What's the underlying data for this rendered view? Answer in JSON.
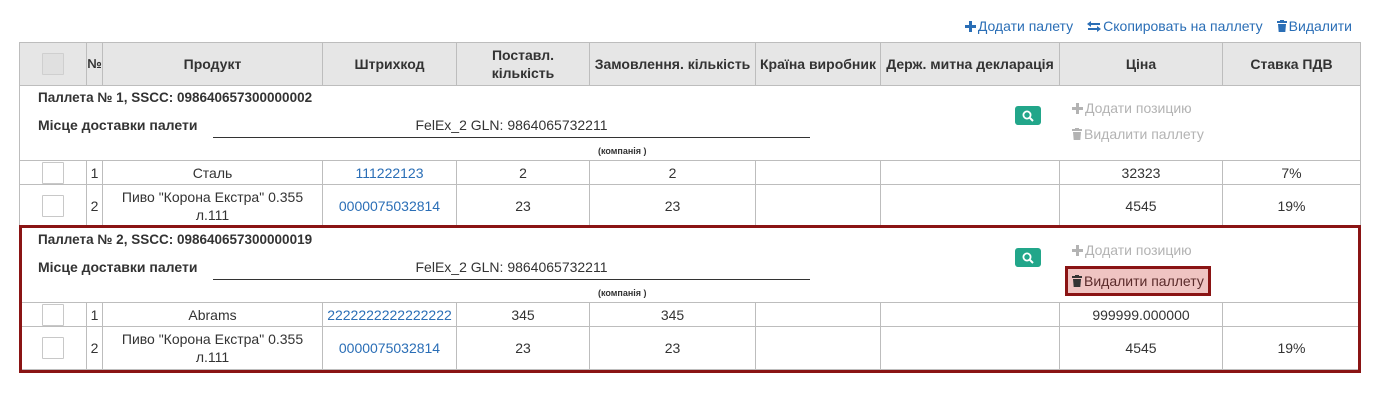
{
  "toolbar": {
    "add_pallet": "Додати палету",
    "copy_to_pallet": "Скопировать на паллету",
    "delete": "Видалити"
  },
  "columns": [
    "№",
    "Продукт",
    "Штрихкод",
    "Поставл. кількість",
    "Замовлення. кількість",
    "Країна виробник",
    "Держ. митна декларація",
    "Ціна",
    "Ставка ПДВ"
  ],
  "pallets": [
    {
      "title": "Паллета № 1, SSCC: 098640657300000002",
      "place_label": "Місце доставки палети",
      "place_value": "FelEx_2 GLN: 9864065732211",
      "company_hint": "(компанія )",
      "add_position": "Додати позицию",
      "delete_pallet": "Видалити паллету",
      "items": [
        {
          "num": "1",
          "product": "Сталь",
          "barcode": "111222123",
          "supplied": "2",
          "ordered": "2",
          "country": "",
          "declaration": "",
          "price": "32323",
          "vat": "7%"
        },
        {
          "num": "2",
          "product": "Пиво \"Корона Екстра\" 0.355 л.111",
          "barcode": "0000075032814",
          "supplied": "23",
          "ordered": "23",
          "country": "",
          "declaration": "",
          "price": "4545",
          "vat": "19%"
        }
      ]
    },
    {
      "title": "Паллета № 2, SSCC: 098640657300000019",
      "place_label": "Місце доставки палети",
      "place_value": "FelEx_2 GLN: 9864065732211",
      "company_hint": "(компанія )",
      "add_position": "Додати позицию",
      "delete_pallet": "Видалити паллету",
      "items": [
        {
          "num": "1",
          "product": "Abrams",
          "barcode": "2222222222222222",
          "supplied": "345",
          "ordered": "345",
          "country": "",
          "declaration": "",
          "price": "999999.000000",
          "vat": ""
        },
        {
          "num": "2",
          "product": "Пиво \"Корона Екстра\" 0.355 л.111",
          "barcode": "0000075032814",
          "supplied": "23",
          "ordered": "23",
          "country": "",
          "declaration": "",
          "price": "4545",
          "vat": "19%"
        }
      ]
    }
  ],
  "colors": {
    "link": "#2a6eb6",
    "header_bg": "#e6e6e6",
    "search_button": "#22a68a",
    "highlight_border": "#8a1414",
    "highlight_fill": "#efc4c2",
    "disabled_text": "#b3b3b3"
  },
  "icons": {
    "add": "plus-icon",
    "copy": "swap-arrows-icon",
    "delete": "trash-icon",
    "search": "magnifier-icon"
  }
}
